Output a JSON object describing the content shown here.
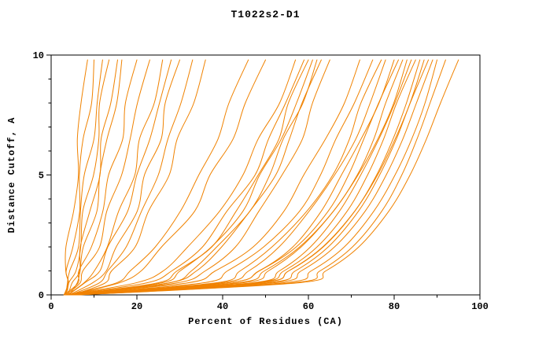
{
  "chart_data": {
    "type": "line",
    "title": "T1022s2-D1",
    "xlabel": "Percent of Residues (CA)",
    "ylabel": "Distance Cutoff, A",
    "xlim": [
      0,
      100
    ],
    "ylim": [
      0,
      10
    ],
    "x_major_ticks": [
      0,
      20,
      40,
      60,
      80,
      100
    ],
    "x_minor_step": 10,
    "y_major_ticks": [
      0,
      5,
      10
    ],
    "y_minor_step": 1,
    "grid": "off",
    "legend": "none",
    "line_color": "#f08200",
    "axis_color": "#000000",
    "text_color": "#000000",
    "background": "#ffffff",
    "y_levels": [
      0,
      0.5,
      1,
      2,
      3.5,
      5,
      6.5,
      8,
      9.8
    ],
    "series": [
      [
        3,
        3.3,
        3.6,
        4.1,
        4.9,
        5.8,
        6.6,
        7.4,
        8.5
      ],
      [
        3.2,
        3.8,
        4.2,
        5,
        6,
        7,
        7.9,
        8.8,
        10
      ],
      [
        3.5,
        4.2,
        4.7,
        5.7,
        7,
        8.3,
        9.4,
        10.6,
        12
      ],
      [
        3.8,
        4.8,
        5.4,
        6.6,
        8.1,
        9.5,
        10.8,
        12,
        13.5
      ],
      [
        4,
        5.2,
        6,
        7.3,
        9.1,
        10.8,
        12.3,
        13.7,
        15.5
      ],
      [
        4.2,
        5.7,
        6.6,
        8.1,
        10,
        11.7,
        13.2,
        14.7,
        16.5
      ],
      [
        3,
        5.6,
        7,
        9.2,
        11.8,
        14,
        16,
        17.8,
        20
      ],
      [
        3.4,
        6.4,
        8,
        10.6,
        13.6,
        16.1,
        18.4,
        20.5,
        23
      ],
      [
        3.8,
        8,
        10,
        12.9,
        16.2,
        18.9,
        21.3,
        23.4,
        26
      ],
      [
        4,
        8.5,
        10.7,
        13.8,
        17.4,
        20.3,
        22.9,
        25.2,
        28
      ],
      [
        4.2,
        10,
        12.4,
        15.7,
        19.5,
        22.4,
        25,
        27.3,
        30
      ],
      [
        4.5,
        10.9,
        13.5,
        17.2,
        21.4,
        24.7,
        27.5,
        30,
        33
      ],
      [
        5,
        11.9,
        14.8,
        18.9,
        23.4,
        26.9,
        30,
        32.7,
        36
      ],
      [
        4,
        14.8,
        18.7,
        24.2,
        30.1,
        34.7,
        38.5,
        42,
        46
      ],
      [
        4.5,
        16.1,
        20.5,
        26.4,
        32.8,
        37.7,
        41.9,
        45.6,
        50
      ],
      [
        3.5,
        20.4,
        25.5,
        32.3,
        39.2,
        44.5,
        48.8,
        52.6,
        57
      ],
      [
        3.8,
        22.7,
        28.1,
        34.9,
        41.7,
        46.9,
        51.1,
        54.7,
        59
      ],
      [
        4,
        24.6,
        30,
        36.8,
        43.5,
        48.5,
        52.5,
        56,
        60
      ],
      [
        4.2,
        25.1,
        30.6,
        37.4,
        44.2,
        49.3,
        53.4,
        56.9,
        61
      ],
      [
        4.5,
        27,
        32.5,
        39.3,
        45.9,
        50.8,
        54.8,
        58.2,
        62
      ],
      [
        5,
        27.7,
        33.2,
        40.1,
        46.8,
        51.7,
        55.7,
        59.1,
        63
      ],
      [
        5.2,
        30,
        35.6,
        42.5,
        49.1,
        54,
        57.9,
        61.2,
        65
      ],
      [
        3,
        32.3,
        38.7,
        46.5,
        54.1,
        59.6,
        64,
        67.7,
        72
      ],
      [
        3.2,
        35.2,
        41.8,
        49.7,
        57.3,
        62.7,
        67.1,
        70.8,
        75
      ],
      [
        3.5,
        37.6,
        44.2,
        52.2,
        59.7,
        65,
        69.4,
        72.9,
        77
      ],
      [
        3.8,
        38.9,
        45.5,
        53.4,
        60.9,
        66.2,
        70.4,
        74,
        78
      ],
      [
        4,
        41.2,
        47.9,
        55.8,
        63.2,
        68.4,
        72.6,
        76,
        80
      ],
      [
        4.2,
        41.8,
        48.6,
        56.6,
        64,
        69.3,
        73.5,
        77,
        81
      ],
      [
        4.4,
        43.7,
        50.4,
        58.2,
        65.5,
        70.7,
        74.8,
        78.2,
        82
      ],
      [
        4.6,
        44.3,
        51.1,
        59,
        66.4,
        71.6,
        75.7,
        79.2,
        83
      ],
      [
        4.8,
        46.1,
        52.9,
        60.6,
        67.8,
        72.9,
        77,
        80.3,
        84
      ],
      [
        5,
        46.8,
        53.6,
        61.4,
        68.7,
        73.8,
        77.9,
        81.2,
        85
      ],
      [
        5.2,
        48.5,
        55.2,
        63,
        70.2,
        75.2,
        79.1,
        82.4,
        86
      ],
      [
        5.4,
        49.1,
        55.9,
        63.7,
        71,
        76.1,
        80,
        83.3,
        87
      ],
      [
        5.6,
        50.8,
        57.6,
        65.3,
        72.4,
        77.3,
        81.2,
        84.4,
        88
      ],
      [
        5.8,
        51.5,
        58.3,
        66.1,
        73.3,
        78.2,
        82.1,
        85.3,
        89
      ],
      [
        6,
        53.3,
        60,
        67.7,
        74.6,
        79.5,
        83.4,
        86.5,
        90
      ],
      [
        6.2,
        55.5,
        62.2,
        69.9,
        76.9,
        81.7,
        85.4,
        88.6,
        92
      ],
      [
        6.5,
        57.4,
        64.3,
        72.2,
        79.4,
        84.4,
        88.2,
        91.4,
        95
      ]
    ]
  }
}
